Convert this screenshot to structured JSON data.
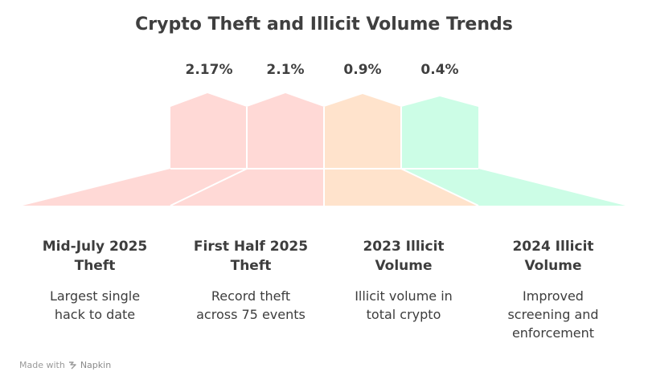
{
  "title": "Crypto Theft and Illicit Volume Trends",
  "colors": {
    "red": "#ffd9d6",
    "orange": "#ffe3cc",
    "green": "#ccfde6"
  },
  "items": [
    {
      "value": "2.17%",
      "title": "Mid-July 2025 Theft",
      "title_lines": [
        "Mid-July 2025",
        "Theft"
      ],
      "desc_lines": [
        "Largest single",
        "hack to date"
      ],
      "color": "#ffd9d6"
    },
    {
      "value": "2.1%",
      "title": "First Half 2025 Theft",
      "title_lines": [
        "First Half 2025",
        "Theft"
      ],
      "desc_lines": [
        "Record theft",
        "across 75 events"
      ],
      "color": "#ffd9d6"
    },
    {
      "value": "0.9%",
      "title": "2023 Illicit Volume",
      "title_lines": [
        "2023 Illicit",
        "Volume"
      ],
      "desc_lines": [
        "Illicit volume in",
        "total crypto"
      ],
      "color": "#ffe3cc"
    },
    {
      "value": "0.4%",
      "title": "2024 Illicit Volume",
      "title_lines": [
        "2024 Illicit",
        "Volume"
      ],
      "desc_lines": [
        "Improved",
        "screening and",
        "enforcement"
      ],
      "color": "#ccfde6"
    }
  ],
  "footer": {
    "made_with": "Made with",
    "brand": "Napkin",
    "icon": "napkin-logo-icon"
  }
}
